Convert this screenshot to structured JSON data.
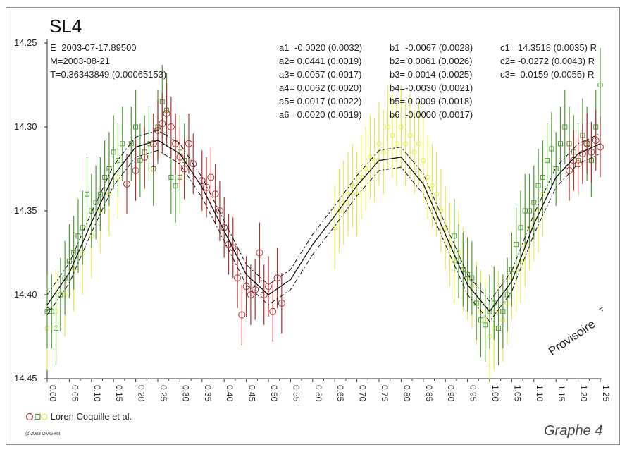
{
  "header": {
    "title": "SL4",
    "info_lines": [
      "E=2003-07-17.89500",
      "M=2003-08-21",
      "T=0.36343849 (0.00065153)"
    ]
  },
  "coefficients": {
    "a": [
      "a1=-0.0020 (0.0032)",
      "a2= 0.0441 (0.0019)",
      "a3= 0.0057 (0.0017)",
      "a4= 0.0062 (0.0020)",
      "a5= 0.0017 (0.0022)",
      "a6= 0.0020 (0.0019)"
    ],
    "b": [
      "b1=-0.0067 (0.0028)",
      "b2= 0.0061 (0.0026)",
      "b3= 0.0014 (0.0025)",
      "b4=-0.0030 (0.0021)",
      "b5= 0.0009 (0.0018)",
      "b6=-0.0000 (0.0017)"
    ],
    "c": [
      "c1= 14.3518 (0.0035) R",
      "c2= -0.0272 (0.0043) R",
      "c3=  0.0159 (0.0055) R"
    ]
  },
  "legend": {
    "text": "Loren Coquille et al."
  },
  "footer": {
    "copyright": "(c)2003 OMG-RII",
    "graph_label": "Graphe 4",
    "provisional_label": "Provisoire"
  },
  "colors": {
    "red": "#b03030",
    "green": "#4f9a35",
    "yellow": "#e9e94a",
    "curve": "#111111"
  },
  "chart_data": {
    "type": "scatter",
    "xlim": [
      0,
      1.25
    ],
    "ylim": [
      14.45,
      14.25
    ],
    "y_inverted": true,
    "xticks": [
      "0.00",
      "0.05",
      "0.10",
      "0.15",
      "0.20",
      "0.25",
      "0.30",
      "0.35",
      "0.40",
      "0.45",
      "0.50",
      "0.55",
      "0.60",
      "0.65",
      "0.70",
      "0.75",
      "0.80",
      "0.85",
      "0.90",
      "0.95",
      "1.00",
      "1.05",
      "1.10",
      "1.15",
      "1.20",
      "1.25"
    ],
    "yticks": [
      "14.25",
      "14.30",
      "14.35",
      "14.40",
      "14.45"
    ],
    "series": [
      {
        "color": "red",
        "marker": "circle",
        "points": [
          [
            0.18,
            14.334
          ],
          [
            0.2,
            14.326
          ],
          [
            0.22,
            14.318
          ],
          [
            0.24,
            14.31
          ],
          [
            0.25,
            14.302
          ],
          [
            0.26,
            14.298
          ],
          [
            0.27,
            14.292
          ],
          [
            0.28,
            14.3
          ],
          [
            0.29,
            14.31
          ],
          [
            0.3,
            14.318
          ],
          [
            0.31,
            14.325
          ],
          [
            0.32,
            14.31
          ],
          [
            0.33,
            14.322
          ],
          [
            0.35,
            14.332
          ],
          [
            0.36,
            14.336
          ],
          [
            0.37,
            14.33
          ],
          [
            0.38,
            14.34
          ],
          [
            0.39,
            14.35
          ],
          [
            0.4,
            14.36
          ],
          [
            0.41,
            14.37
          ],
          [
            0.42,
            14.372
          ],
          [
            0.43,
            14.39
          ],
          [
            0.44,
            14.412
          ],
          [
            0.45,
            14.395
          ],
          [
            0.46,
            14.4
          ],
          [
            0.47,
            14.397
          ],
          [
            0.48,
            14.375
          ],
          [
            0.49,
            14.4
          ],
          [
            0.5,
            14.395
          ],
          [
            0.51,
            14.41
          ],
          [
            0.52,
            14.39
          ],
          [
            0.53,
            14.405
          ],
          [
            1.18,
            14.326
          ],
          [
            1.19,
            14.32
          ],
          [
            1.2,
            14.322
          ],
          [
            1.21,
            14.316
          ],
          [
            1.22,
            14.31
          ],
          [
            1.23,
            14.315
          ],
          [
            1.24,
            14.308
          ],
          [
            1.25,
            14.312
          ]
        ],
        "error": 0.018
      },
      {
        "color": "green",
        "marker": "square",
        "points": [
          [
            0.0,
            14.41
          ],
          [
            0.01,
            14.41
          ],
          [
            0.02,
            14.42
          ],
          [
            0.03,
            14.4
          ],
          [
            0.04,
            14.39
          ],
          [
            0.05,
            14.38
          ],
          [
            0.06,
            14.375
          ],
          [
            0.07,
            14.365
          ],
          [
            0.08,
            14.36
          ],
          [
            0.09,
            14.34
          ],
          [
            0.1,
            14.35
          ],
          [
            0.11,
            14.345
          ],
          [
            0.12,
            14.34
          ],
          [
            0.13,
            14.33
          ],
          [
            0.14,
            14.325
          ],
          [
            0.15,
            14.315
          ],
          [
            0.16,
            14.32
          ],
          [
            0.17,
            14.31
          ],
          [
            0.19,
            14.31
          ],
          [
            0.2,
            14.3
          ],
          [
            0.21,
            14.32
          ],
          [
            0.22,
            14.315
          ],
          [
            0.23,
            14.31
          ],
          [
            0.24,
            14.325
          ],
          [
            0.25,
            14.3
          ],
          [
            0.26,
            14.285
          ],
          [
            0.27,
            14.29
          ],
          [
            0.28,
            14.33
          ],
          [
            0.29,
            14.335
          ],
          [
            0.3,
            14.33
          ],
          [
            0.3,
            14.315
          ],
          [
            0.31,
            14.32
          ],
          [
            0.92,
            14.365
          ],
          [
            0.93,
            14.38
          ],
          [
            0.94,
            14.385
          ],
          [
            0.95,
            14.388
          ],
          [
            0.96,
            14.39
          ],
          [
            0.97,
            14.405
          ],
          [
            0.98,
            14.415
          ],
          [
            0.99,
            14.418
          ],
          [
            1.0,
            14.41
          ],
          [
            1.01,
            14.405
          ],
          [
            1.02,
            14.42
          ],
          [
            1.03,
            14.41
          ],
          [
            1.04,
            14.4
          ],
          [
            1.05,
            14.385
          ],
          [
            1.06,
            14.37
          ],
          [
            1.07,
            14.36
          ],
          [
            1.08,
            14.35
          ],
          [
            1.09,
            14.35
          ],
          [
            1.1,
            14.345
          ],
          [
            1.11,
            14.335
          ],
          [
            1.12,
            14.33
          ],
          [
            1.13,
            14.32
          ],
          [
            1.14,
            14.313
          ],
          [
            1.15,
            14.325
          ],
          [
            1.16,
            14.31
          ],
          [
            1.17,
            14.3
          ],
          [
            1.18,
            14.31
          ],
          [
            1.19,
            14.315
          ],
          [
            1.2,
            14.32
          ],
          [
            1.21,
            14.305
          ],
          [
            1.22,
            14.31
          ],
          [
            1.23,
            14.32
          ],
          [
            1.24,
            14.3
          ],
          [
            1.25,
            14.275
          ]
        ],
        "error": 0.022
      },
      {
        "color": "yellow",
        "marker": "circle",
        "points": [
          [
            0.0,
            14.42
          ],
          [
            0.02,
            14.41
          ],
          [
            0.04,
            14.4
          ],
          [
            0.06,
            14.385
          ],
          [
            0.08,
            14.375
          ],
          [
            0.1,
            14.365
          ],
          [
            0.12,
            14.35
          ],
          [
            0.14,
            14.34
          ],
          [
            0.16,
            14.33
          ],
          [
            0.65,
            14.36
          ],
          [
            0.66,
            14.35
          ],
          [
            0.67,
            14.345
          ],
          [
            0.68,
            14.34
          ],
          [
            0.69,
            14.335
          ],
          [
            0.7,
            14.34
          ],
          [
            0.71,
            14.33
          ],
          [
            0.72,
            14.325
          ],
          [
            0.73,
            14.318
          ],
          [
            0.74,
            14.32
          ],
          [
            0.75,
            14.31
          ],
          [
            0.76,
            14.315
          ],
          [
            0.77,
            14.3
          ],
          [
            0.78,
            14.305
          ],
          [
            0.79,
            14.31
          ],
          [
            0.8,
            14.3
          ],
          [
            0.81,
            14.31
          ],
          [
            0.82,
            14.305
          ],
          [
            0.83,
            14.315
          ],
          [
            0.84,
            14.31
          ],
          [
            0.85,
            14.32
          ],
          [
            0.86,
            14.33
          ],
          [
            0.87,
            14.335
          ],
          [
            0.88,
            14.34
          ],
          [
            0.89,
            14.35
          ],
          [
            0.9,
            14.36
          ],
          [
            0.91,
            14.37
          ],
          [
            0.92,
            14.38
          ],
          [
            0.93,
            14.375
          ],
          [
            0.94,
            14.385
          ],
          [
            0.95,
            14.39
          ],
          [
            0.96,
            14.395
          ],
          [
            0.97,
            14.405
          ],
          [
            0.98,
            14.41
          ],
          [
            0.99,
            14.415
          ],
          [
            1.0,
            14.425
          ],
          [
            1.01,
            14.42
          ],
          [
            1.02,
            14.41
          ],
          [
            1.03,
            14.415
          ],
          [
            1.04,
            14.405
          ],
          [
            1.05,
            14.39
          ],
          [
            1.06,
            14.385
          ],
          [
            1.07,
            14.38
          ],
          [
            1.08,
            14.37
          ],
          [
            1.09,
            14.36
          ],
          [
            1.1,
            14.355
          ],
          [
            1.11,
            14.35
          ],
          [
            1.12,
            14.34
          ]
        ],
        "error": 0.025
      }
    ],
    "fit": {
      "x": [
        0.0,
        0.05,
        0.1,
        0.15,
        0.2,
        0.25,
        0.3,
        0.35,
        0.4,
        0.45,
        0.5,
        0.55,
        0.6,
        0.65,
        0.7,
        0.75,
        0.8,
        0.85,
        0.9,
        0.95,
        1.0,
        1.05,
        1.1,
        1.15,
        1.2,
        1.25
      ],
      "y": [
        14.406,
        14.387,
        14.357,
        14.329,
        14.312,
        14.308,
        14.316,
        14.336,
        14.362,
        14.388,
        14.4,
        14.391,
        14.37,
        14.353,
        14.335,
        14.32,
        14.318,
        14.334,
        14.364,
        14.394,
        14.41,
        14.392,
        14.358,
        14.33,
        14.316,
        14.31
      ],
      "band": 0.006
    }
  }
}
